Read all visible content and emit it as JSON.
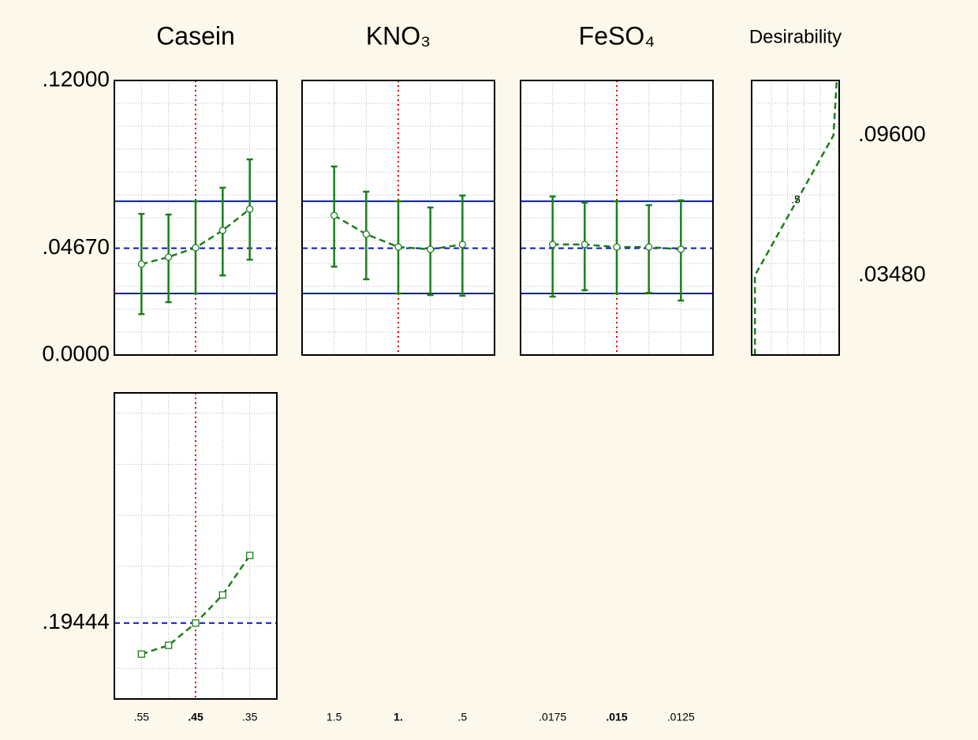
{
  "chart_data": [
    {
      "type": "line",
      "title": "Casein",
      "marker": "circle",
      "color": "#1a7f1a",
      "x": [
        0.55,
        0.5,
        0.45,
        0.4,
        0.35
      ],
      "values": [
        0.0397,
        0.0428,
        0.0469,
        0.0545,
        0.0638
      ],
      "lower": [
        0.0179,
        0.0231,
        0.0269,
        0.0348,
        0.0417
      ],
      "upper": [
        0.0617,
        0.0614,
        0.0672,
        0.0731,
        0.0855
      ],
      "xlim": [
        0.6,
        0.3
      ],
      "ylim": [
        0,
        0.12
      ],
      "yticks": [
        {
          "value": 0.12,
          "label": ".12000"
        },
        {
          "value": 0.0467,
          "label": ".04670"
        },
        {
          "value": 0,
          "label": "0.0000"
        }
      ],
      "yminorticks": [
        0.01,
        0.02,
        0.03,
        0.04,
        0.05,
        0.06,
        0.07,
        0.08,
        0.09,
        0.1,
        0.11
      ],
      "current": 0.45,
      "limits": [
        0.0672,
        0.0269
      ],
      "ref_line": 0.0467
    },
    {
      "type": "line",
      "title": "KNO₃",
      "marker": "circle",
      "color": "#1a7f1a",
      "x": [
        1.5,
        1.25,
        1.0,
        0.75,
        0.5
      ],
      "values": [
        0.061,
        0.0528,
        0.0472,
        0.0462,
        0.0483
      ],
      "lower": [
        0.0386,
        0.0331,
        0.0269,
        0.0262,
        0.0259
      ],
      "upper": [
        0.0824,
        0.0714,
        0.0672,
        0.0645,
        0.0697
      ],
      "xlim": [
        1.75,
        0.25
      ],
      "ylim": [
        0,
        0.12
      ],
      "xticks": [
        {
          "value": 1.5,
          "label": "1.5"
        },
        {
          "value": 1.0,
          "label": "1."
        },
        {
          "value": 0.5,
          "label": ".5"
        }
      ],
      "yminorticks": [
        0.01,
        0.02,
        0.03,
        0.04,
        0.05,
        0.06,
        0.07,
        0.08,
        0.09,
        0.1,
        0.11
      ],
      "current": 1.0,
      "limits": [
        0.0672,
        0.0269
      ],
      "ref_line": 0.0467
    },
    {
      "type": "line",
      "title": "FeSO₄",
      "marker": "circle",
      "color": "#1a7f1a",
      "x": [
        0.0175,
        0.01625,
        0.015,
        0.01375,
        0.0125
      ],
      "values": [
        0.0483,
        0.0483,
        0.0472,
        0.0472,
        0.0462
      ],
      "lower": [
        0.0255,
        0.0283,
        0.0269,
        0.0272,
        0.0238
      ],
      "upper": [
        0.0693,
        0.0666,
        0.0672,
        0.0655,
        0.0676
      ],
      "xlim": [
        0.01875,
        0.01125
      ],
      "ylim": [
        0,
        0.12
      ],
      "xticks": [
        {
          "value": 0.0175,
          "label": ".0175"
        },
        {
          "value": 0.015,
          "label": ".015"
        },
        {
          "value": 0.0125,
          "label": ".0125"
        }
      ],
      "yminorticks": [
        0.01,
        0.02,
        0.03,
        0.04,
        0.05,
        0.06,
        0.07,
        0.08,
        0.09,
        0.1,
        0.11
      ],
      "current": 0.015,
      "limits": [
        0.0672,
        0.0269
      ],
      "ref_line": 0.0467
    },
    {
      "type": "desirability",
      "title": "Desirability",
      "color": "#1a7f1a",
      "x": [
        0,
        0,
        0.96,
        1
      ],
      "values": [
        0,
        0.0348,
        0.096,
        0.12
      ],
      "xlim": [
        -0.04,
        1.03
      ],
      "ylim": [
        0,
        0.12
      ],
      "xticks": [
        {
          "value": 0.5,
          "label": ".5"
        }
      ],
      "xminorticks": [
        0.2,
        0.4,
        0.6,
        0.8
      ],
      "yticks": [
        {
          "value": 0.096,
          "label": ".09600"
        },
        {
          "value": 0.0348,
          "label": ".03480"
        }
      ],
      "yminorticks": [
        0.01,
        0.02,
        0.03,
        0.04,
        0.05,
        0.06,
        0.07,
        0.08,
        0.09,
        0.1,
        0.11
      ],
      "yaxis_side": "right"
    },
    {
      "type": "line",
      "marker": "square",
      "color": "#1a7f1a",
      "x": [
        0.55,
        0.5,
        0.45,
        0.4,
        0.35
      ],
      "values": [
        0.164,
        0.1726,
        0.1944,
        0.222,
        0.2607
      ],
      "xlim": [
        0.6,
        0.3
      ],
      "ylim": [
        0.12,
        0.42
      ],
      "xticks": [
        {
          "value": 0.55,
          "label": ".55"
        },
        {
          "value": 0.45,
          "label": ".45"
        },
        {
          "value": 0.35,
          "label": ".35"
        }
      ],
      "yticks": [
        {
          "value": 0.19444,
          "label": ".19444"
        }
      ],
      "yminorticks": [
        0.15,
        0.2,
        0.25,
        0.3,
        0.35,
        0.4
      ],
      "current": 0.45,
      "ref_line": 0.19444
    }
  ]
}
